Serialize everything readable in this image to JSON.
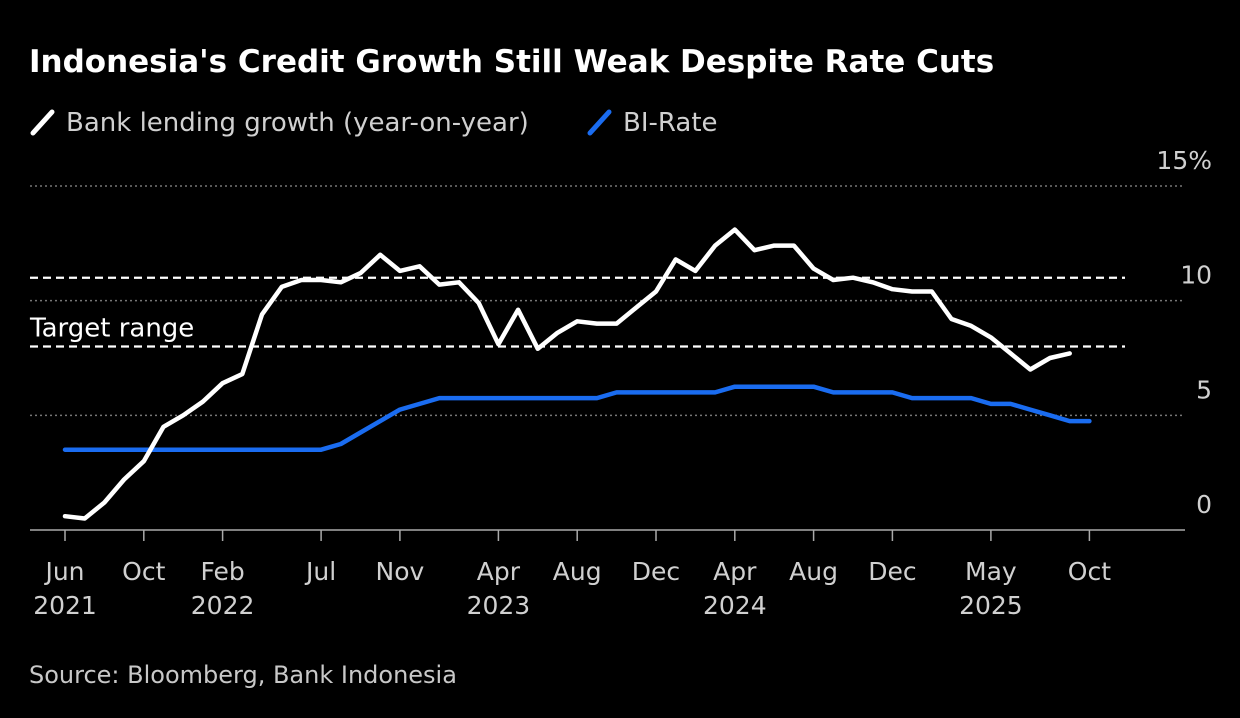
{
  "chart_data": {
    "type": "line",
    "title": "Indonesia's Credit Growth Still Weak Despite Rate Cuts",
    "source": "Source: Bloomberg, Bank Indonesia",
    "ylim": [
      0,
      15
    ],
    "yticks": [
      {
        "value": 0,
        "label": "0"
      },
      {
        "value": 5,
        "label": "5"
      },
      {
        "value": 10,
        "label": "10"
      },
      {
        "value": 15,
        "label": "15%"
      }
    ],
    "x_start": "2021-06",
    "x_end": "2026-01",
    "xticks": [
      {
        "date": "2021-06",
        "label": "Jun",
        "year": "2021"
      },
      {
        "date": "2021-10",
        "label": "Oct",
        "year": ""
      },
      {
        "date": "2022-02",
        "label": "Feb",
        "year": "2022"
      },
      {
        "date": "2022-07",
        "label": "Jul",
        "year": ""
      },
      {
        "date": "2022-11",
        "label": "Nov",
        "year": ""
      },
      {
        "date": "2023-04",
        "label": "Apr",
        "year": "2023"
      },
      {
        "date": "2023-08",
        "label": "Aug",
        "year": ""
      },
      {
        "date": "2023-12",
        "label": "Dec",
        "year": ""
      },
      {
        "date": "2024-04",
        "label": "Apr",
        "year": "2024"
      },
      {
        "date": "2024-08",
        "label": "Aug",
        "year": ""
      },
      {
        "date": "2024-12",
        "label": "Dec",
        "year": ""
      },
      {
        "date": "2025-05",
        "label": "May",
        "year": "2025"
      },
      {
        "date": "2025-10",
        "label": "Oct",
        "year": ""
      }
    ],
    "target_range": {
      "label": "Target range",
      "low": 8,
      "high": 11
    },
    "colors": {
      "lending": "#ffffff",
      "birate": "#1a6cf0",
      "grid": "#777777",
      "target": "#ffffff",
      "axis": "#aaaaaa"
    },
    "series": [
      {
        "name": "Bank lending growth (year-on-year)",
        "key": "lending",
        "start": "2021-06",
        "values": [
          0.6,
          0.5,
          1.2,
          2.2,
          3.0,
          4.5,
          5.0,
          5.6,
          6.4,
          6.8,
          9.4,
          10.6,
          10.9,
          10.9,
          10.8,
          11.2,
          12.0,
          11.3,
          11.5,
          10.7,
          10.8,
          9.9,
          8.1,
          9.6,
          7.9,
          8.6,
          9.1,
          9.0,
          9.0,
          9.7,
          10.4,
          11.8,
          11.3,
          12.4,
          13.1,
          12.2,
          12.4,
          12.4,
          11.4,
          10.9,
          11.0,
          10.8,
          10.5,
          10.4,
          10.4,
          9.2,
          8.9,
          8.4,
          7.7,
          7.0,
          7.5,
          7.7
        ]
      },
      {
        "name": "BI-Rate",
        "key": "birate",
        "start": "2021-06",
        "values": [
          3.5,
          3.5,
          3.5,
          3.5,
          3.5,
          3.5,
          3.5,
          3.5,
          3.5,
          3.5,
          3.5,
          3.5,
          3.5,
          3.5,
          3.75,
          4.25,
          4.75,
          5.25,
          5.5,
          5.75,
          5.75,
          5.75,
          5.75,
          5.75,
          5.75,
          5.75,
          5.75,
          5.75,
          6.0,
          6.0,
          6.0,
          6.0,
          6.0,
          6.0,
          6.25,
          6.25,
          6.25,
          6.25,
          6.25,
          6.0,
          6.0,
          6.0,
          6.0,
          5.75,
          5.75,
          5.75,
          5.75,
          5.5,
          5.5,
          5.25,
          5.0,
          4.75,
          4.75
        ]
      }
    ]
  }
}
